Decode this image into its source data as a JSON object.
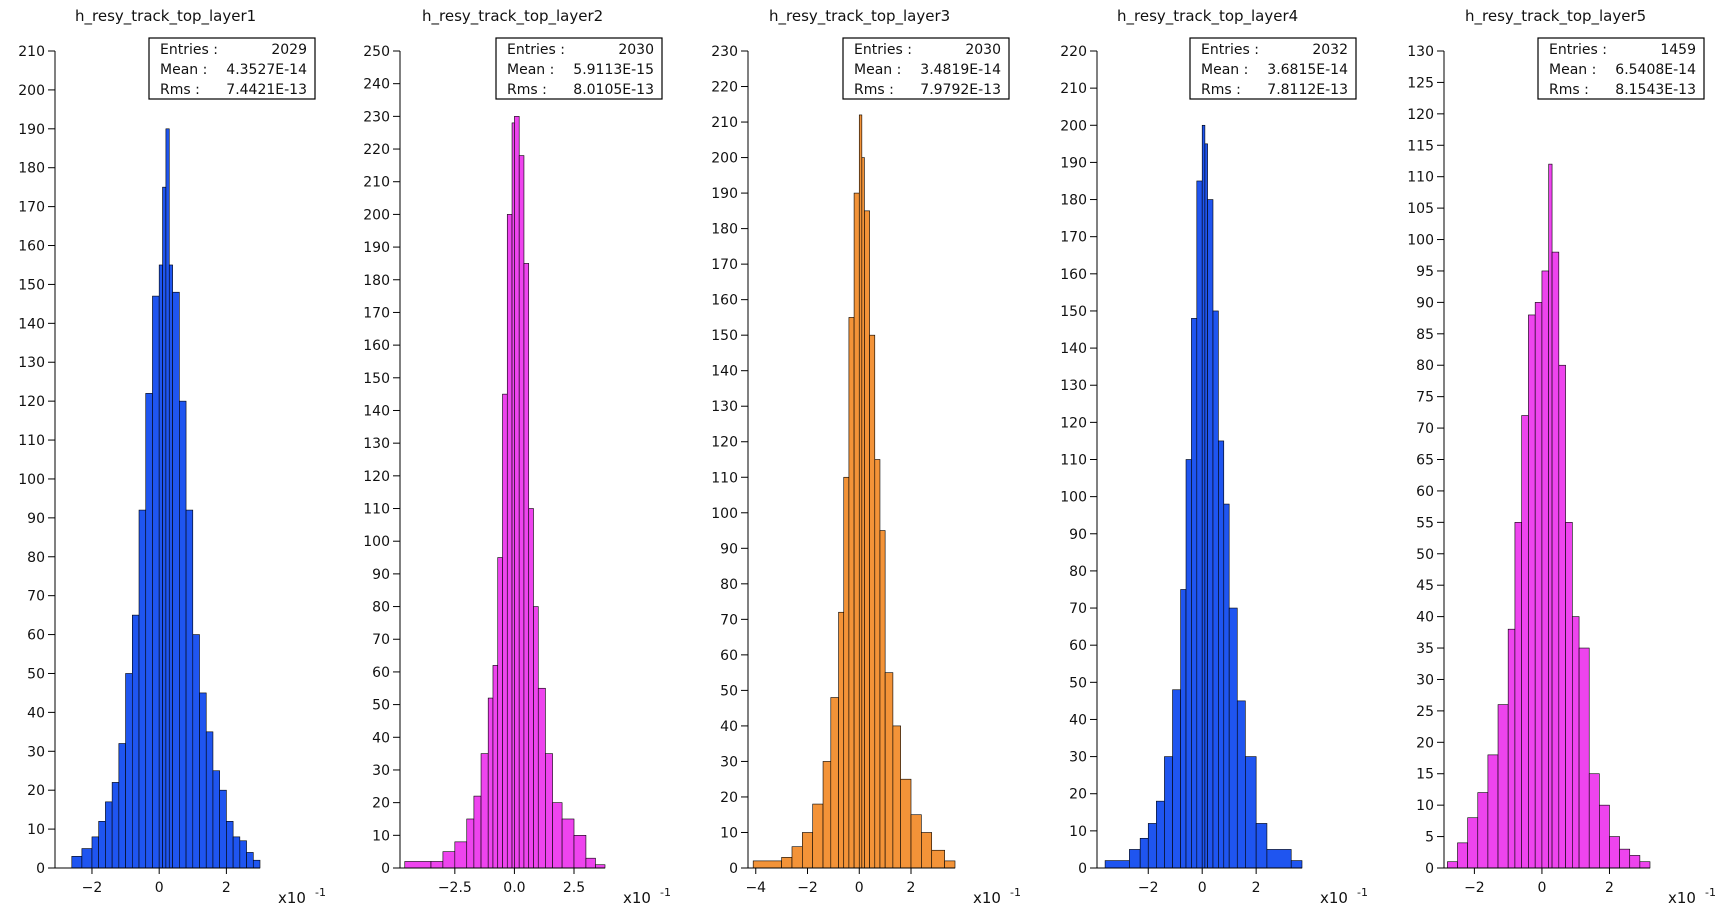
{
  "chart_data": [
    {
      "type": "bar",
      "title": "h_resy_track_top_layer1",
      "color": "#1f55f0",
      "xlim": [
        -3.1,
        3.0
      ],
      "ylim": [
        0,
        210
      ],
      "yticks": [
        0,
        10,
        20,
        30,
        40,
        50,
        60,
        70,
        80,
        90,
        100,
        110,
        120,
        130,
        140,
        150,
        160,
        170,
        180,
        190,
        200,
        210
      ],
      "xticks": [
        -2,
        0,
        2
      ],
      "xticklabels": [
        "−2",
        "0",
        "2"
      ],
      "scale_label": "x10",
      "scale_exp": "-1",
      "stats": {
        "entries_label": "Entries :",
        "entries": "2029",
        "mean_label": "Mean :",
        "mean": "4.3527E-14",
        "rms_label": "Rms :",
        "rms": "7.4421E-13"
      },
      "x": [
        -3.1,
        -2.6,
        -2.3,
        -2.0,
        -1.8,
        -1.6,
        -1.4,
        -1.2,
        -1.0,
        -0.8,
        -0.6,
        -0.4,
        -0.2,
        0.0,
        0.1,
        0.2,
        0.3,
        0.4,
        0.6,
        0.8,
        1.0,
        1.2,
        1.4,
        1.6,
        1.8,
        2.0,
        2.2,
        2.4,
        2.6,
        2.8
      ],
      "values": [
        0,
        3,
        5,
        8,
        12,
        17,
        22,
        32,
        50,
        65,
        92,
        122,
        147,
        155,
        175,
        190,
        155,
        148,
        120,
        92,
        60,
        45,
        35,
        25,
        20,
        12,
        8,
        7,
        4,
        2
      ]
    },
    {
      "type": "bar",
      "title": "h_resy_track_top_layer2",
      "color": "#ee44ee",
      "xlim": [
        -4.8,
        3.8
      ],
      "ylim": [
        0,
        250
      ],
      "yticks": [
        0,
        10,
        20,
        30,
        40,
        50,
        60,
        70,
        80,
        90,
        100,
        110,
        120,
        130,
        140,
        150,
        160,
        170,
        180,
        190,
        200,
        210,
        220,
        230,
        240,
        250
      ],
      "xticks": [
        -2.5,
        0,
        2.5
      ],
      "xticklabels": [
        "−2.5",
        "0.0",
        "2.5"
      ],
      "scale_label": "x10",
      "scale_exp": "-1",
      "stats": {
        "entries_label": "Entries :",
        "entries": "2030",
        "mean_label": "Mean :",
        "mean": "5.9113E-15",
        "rms_label": "Rms :",
        "rms": "8.0105E-13"
      },
      "x": [
        -4.6,
        -3.5,
        -3.0,
        -2.5,
        -2.0,
        -1.7,
        -1.4,
        -1.1,
        -0.9,
        -0.7,
        -0.5,
        -0.3,
        -0.1,
        0.0,
        0.2,
        0.4,
        0.6,
        0.8,
        1.0,
        1.3,
        1.6,
        2.0,
        2.5,
        3.0,
        3.4
      ],
      "values": [
        2,
        2,
        5,
        8,
        15,
        22,
        35,
        52,
        62,
        95,
        145,
        200,
        228,
        230,
        218,
        185,
        110,
        80,
        55,
        35,
        20,
        15,
        10,
        3,
        1
      ]
    },
    {
      "type": "bar",
      "title": "h_resy_track_top_layer3",
      "color": "#f39338",
      "xlim": [
        -4.3,
        3.7
      ],
      "ylim": [
        0,
        230
      ],
      "yticks": [
        0,
        10,
        20,
        30,
        40,
        50,
        60,
        70,
        80,
        90,
        100,
        110,
        120,
        130,
        140,
        150,
        160,
        170,
        180,
        190,
        200,
        210,
        220,
        230
      ],
      "xticks": [
        -4,
        -2,
        0,
        2
      ],
      "xticklabels": [
        "−4",
        "−2",
        "0",
        "2"
      ],
      "scale_label": "x10",
      "scale_exp": "-1",
      "stats": {
        "entries_label": "Entries :",
        "entries": "2030",
        "mean_label": "Mean :",
        "mean": "3.4819E-14",
        "rms_label": "Rms :",
        "rms": "7.9792E-13"
      },
      "x": [
        -4.1,
        -3.0,
        -2.6,
        -2.2,
        -1.8,
        -1.4,
        -1.1,
        -0.8,
        -0.6,
        -0.4,
        -0.2,
        0.0,
        0.1,
        0.2,
        0.4,
        0.6,
        0.8,
        1.0,
        1.3,
        1.6,
        2.0,
        2.4,
        2.8,
        3.3
      ],
      "values": [
        2,
        3,
        6,
        10,
        18,
        30,
        48,
        72,
        110,
        155,
        190,
        212,
        200,
        185,
        150,
        115,
        95,
        55,
        40,
        25,
        15,
        10,
        5,
        2
      ]
    },
    {
      "type": "bar",
      "title": "h_resy_track_top_layer4",
      "color": "#1f55f0",
      "xlim": [
        -3.9,
        3.7
      ],
      "ylim": [
        0,
        220
      ],
      "yticks": [
        0,
        10,
        20,
        30,
        40,
        50,
        60,
        70,
        80,
        90,
        100,
        110,
        120,
        130,
        140,
        150,
        160,
        170,
        180,
        190,
        200,
        210,
        220
      ],
      "xticks": [
        -2,
        0,
        2
      ],
      "xticklabels": [
        "−2",
        "0",
        "2"
      ],
      "scale_label": "x10",
      "scale_exp": "-1",
      "stats": {
        "entries_label": "Entries :",
        "entries": "2032",
        "mean_label": "Mean :",
        "mean": "3.6815E-14",
        "rms_label": "Rms :",
        "rms": "7.8112E-13"
      },
      "x": [
        -3.6,
        -2.7,
        -2.3,
        -2.0,
        -1.7,
        -1.4,
        -1.1,
        -0.8,
        -0.6,
        -0.4,
        -0.2,
        0.0,
        0.1,
        0.2,
        0.4,
        0.6,
        0.8,
        1.0,
        1.3,
        1.6,
        2.0,
        2.4,
        3.3
      ],
      "values": [
        2,
        5,
        8,
        12,
        18,
        30,
        48,
        75,
        110,
        148,
        185,
        200,
        195,
        180,
        150,
        115,
        98,
        70,
        45,
        30,
        12,
        5,
        2
      ]
    },
    {
      "type": "bar",
      "title": "h_resy_track_top_layer5",
      "color": "#ee44ee",
      "xlim": [
        -2.9,
        3.2
      ],
      "ylim": [
        0,
        130
      ],
      "yticks": [
        0,
        5,
        10,
        15,
        20,
        25,
        30,
        35,
        40,
        45,
        50,
        55,
        60,
        65,
        70,
        75,
        80,
        85,
        90,
        95,
        100,
        105,
        110,
        115,
        120,
        125,
        130
      ],
      "xticks": [
        -2,
        0,
        2
      ],
      "xticklabels": [
        "−2",
        "0",
        "2"
      ],
      "scale_label": "x10",
      "scale_exp": "-1",
      "stats": {
        "entries_label": "Entries :",
        "entries": "1459",
        "mean_label": "Mean :",
        "mean": "6.5408E-14",
        "rms_label": "Rms :",
        "rms": "8.1543E-13"
      },
      "x": [
        -2.8,
        -2.5,
        -2.2,
        -1.9,
        -1.6,
        -1.3,
        -1.0,
        -0.8,
        -0.6,
        -0.4,
        -0.2,
        0.0,
        0.2,
        0.3,
        0.5,
        0.7,
        0.9,
        1.1,
        1.4,
        1.7,
        2.0,
        2.3,
        2.6,
        2.9
      ],
      "values": [
        1,
        4,
        8,
        12,
        18,
        26,
        38,
        55,
        72,
        88,
        90,
        95,
        112,
        98,
        80,
        55,
        40,
        35,
        15,
        10,
        5,
        3,
        2,
        1
      ]
    }
  ]
}
